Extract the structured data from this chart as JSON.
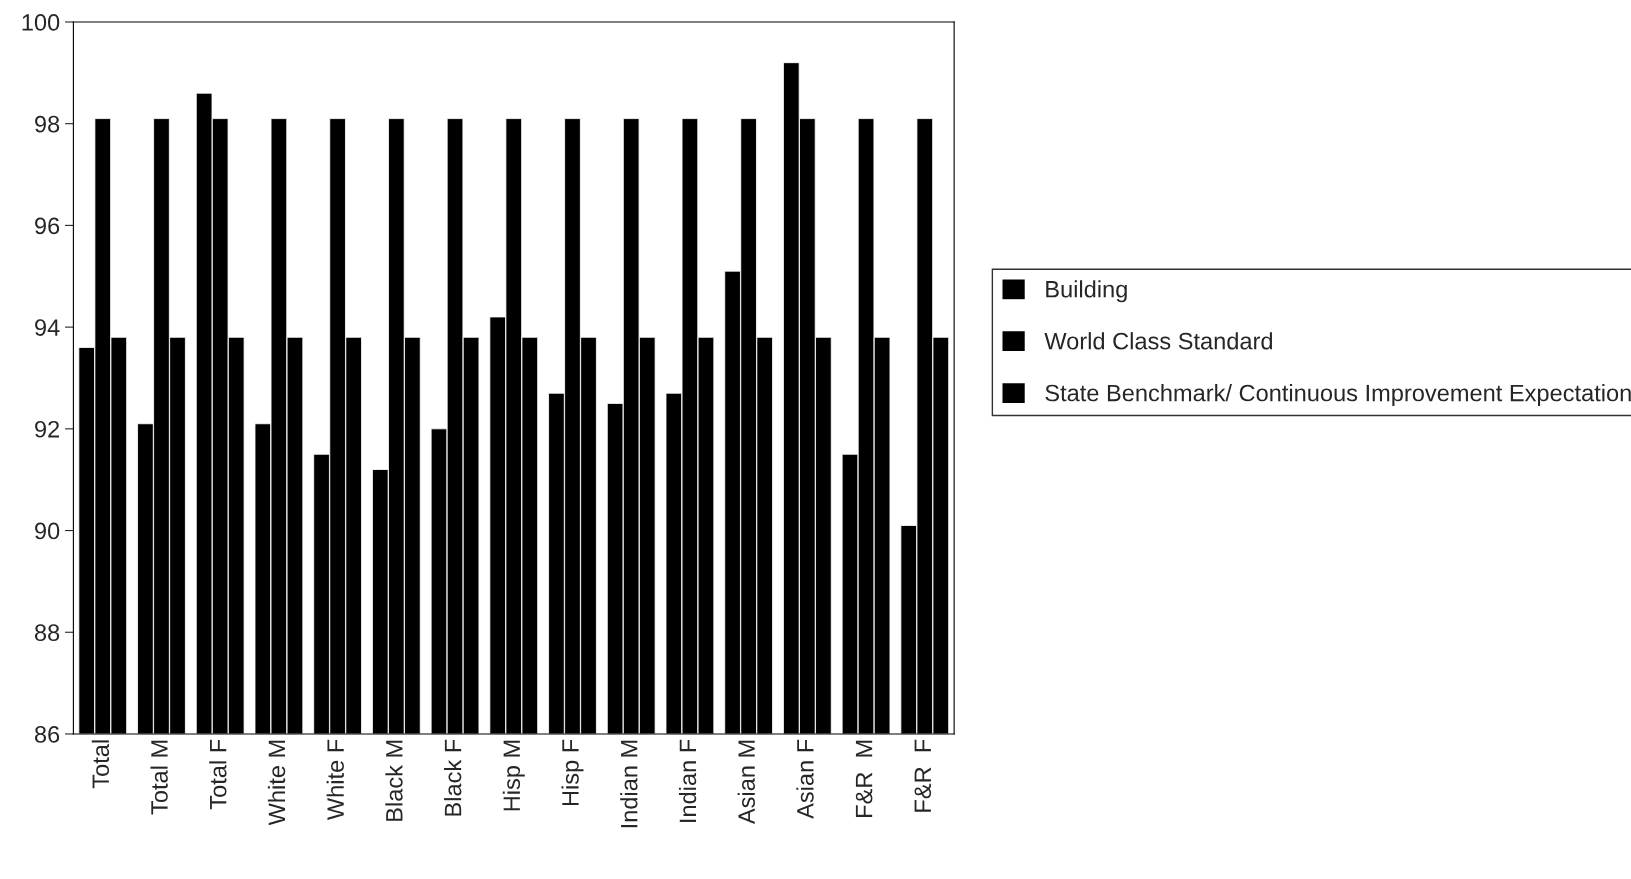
{
  "chart_data": {
    "type": "bar",
    "categories": [
      "Total",
      "Total M",
      "Total F",
      "White M",
      "White F",
      "Black M",
      "Black F",
      "Hisp M",
      "Hisp F",
      "Indian M",
      "Indian F",
      "Asian M",
      "Asian F",
      "F&R  M",
      "F&R  F"
    ],
    "series": [
      {
        "name": "Building",
        "color": "#000000",
        "values": [
          93.6,
          92.1,
          98.6,
          92.1,
          91.5,
          91.2,
          92.0,
          94.2,
          92.7,
          92.5,
          92.7,
          95.1,
          99.2,
          91.5,
          90.1
        ]
      },
      {
        "name": "World Class Standard",
        "color": "#000000",
        "values": [
          98.1,
          98.1,
          98.1,
          98.1,
          98.1,
          98.1,
          98.1,
          98.1,
          98.1,
          98.1,
          98.1,
          98.1,
          98.1,
          98.1,
          98.1
        ]
      },
      {
        "name": "State Benchmark/ Continuous Improvement Expectation",
        "color": "#000000",
        "values": [
          93.8,
          93.8,
          93.8,
          93.8,
          93.8,
          93.8,
          93.8,
          93.8,
          93.8,
          93.8,
          93.8,
          93.8,
          93.8,
          93.8,
          93.8
        ]
      }
    ],
    "ylim": [
      86,
      100
    ],
    "yticks": [
      86,
      88,
      90,
      92,
      94,
      96,
      98,
      100
    ],
    "grid": false,
    "legend": "right"
  }
}
